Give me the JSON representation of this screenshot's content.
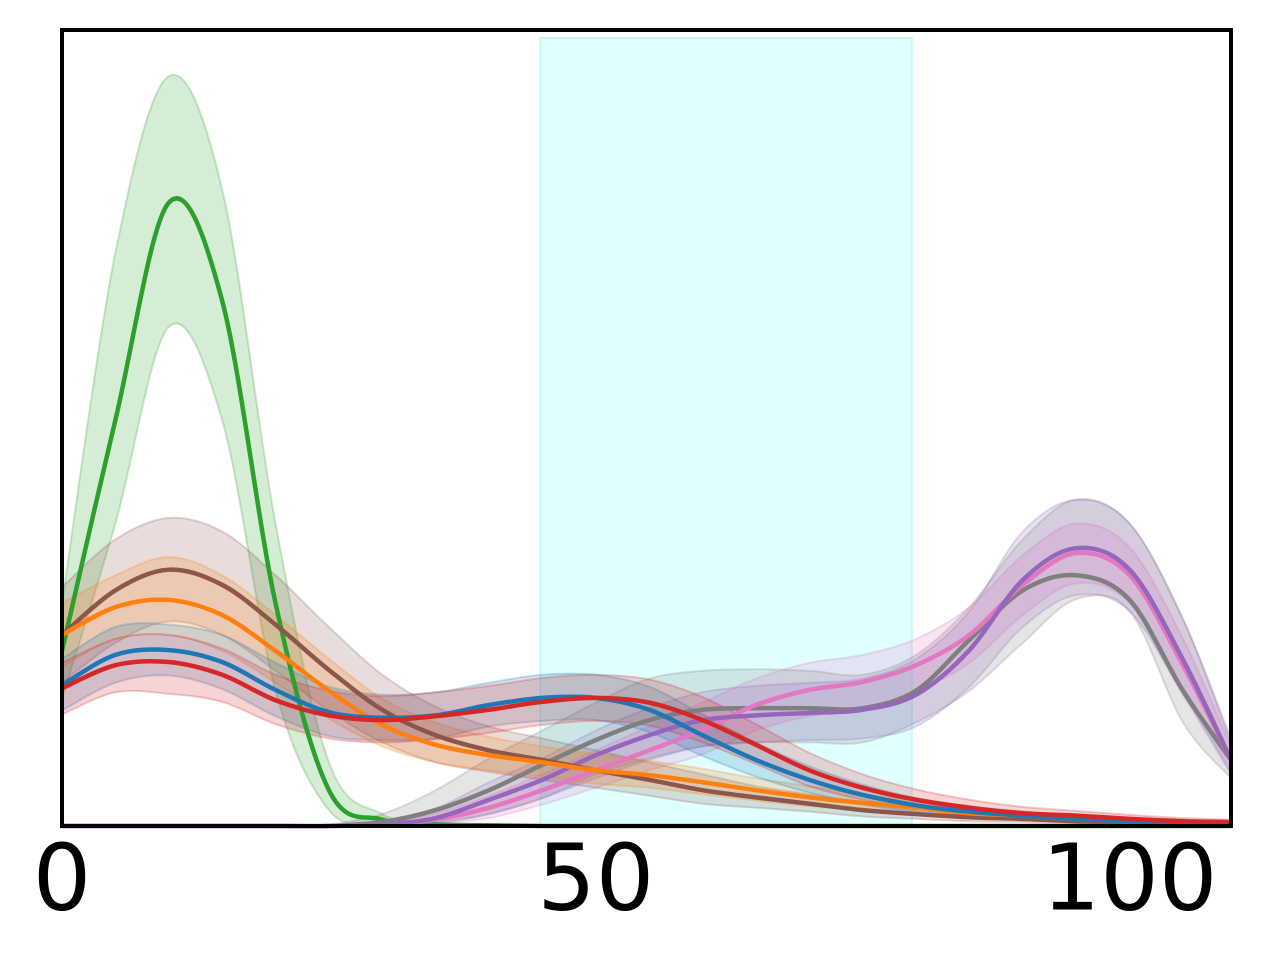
{
  "chart_data": {
    "type": "density",
    "x": [
      0,
      5,
      10,
      15,
      20,
      25,
      30,
      35,
      40,
      45,
      50,
      55,
      60,
      65,
      70,
      75,
      80,
      85,
      90,
      95,
      100,
      105,
      109.5
    ],
    "xlim": [
      0,
      109.5
    ],
    "xticks": [
      0,
      50,
      100
    ],
    "ylim": [
      0,
      100
    ],
    "span": {
      "x": [
        44.8,
        79.6
      ],
      "y": [
        0,
        99
      ],
      "color": "#e0ffff"
    },
    "band_opacity": 0.2,
    "series": [
      {
        "color": "#2ca02c",
        "values": [
          22,
          51,
          78.3,
          66,
          28,
          4.5,
          0.8,
          0.2,
          0.1,
          0,
          0,
          0,
          0,
          0,
          0,
          0,
          0,
          0,
          0,
          0,
          0,
          0,
          0
        ],
        "upper": [
          28,
          72,
          94.2,
          80,
          38,
          8,
          1.5,
          0.3,
          0.1,
          0,
          0,
          0,
          0,
          0,
          0,
          0,
          0,
          0,
          0,
          0,
          0,
          0,
          0
        ],
        "lower": [
          16,
          38,
          62.7,
          51,
          17,
          2,
          0.3,
          0.1,
          0,
          0,
          0,
          0,
          0,
          0,
          0,
          0,
          0,
          0,
          0,
          0,
          0,
          0,
          0
        ]
      },
      {
        "color": "#7f7f7f",
        "values": [
          0,
          0,
          0,
          0,
          0,
          0,
          0.5,
          2,
          4.5,
          7.7,
          10.8,
          13.3,
          14.6,
          14.8,
          14.8,
          14.8,
          17,
          23.4,
          29.6,
          31.5,
          28.4,
          17,
          8.3
        ],
        "upper": [
          0,
          0,
          0,
          0,
          0,
          0.2,
          1.5,
          4.5,
          8.5,
          12,
          15.5,
          18.5,
          19.5,
          19.7,
          19.5,
          19,
          21.5,
          27.5,
          36,
          41,
          38,
          26,
          11
        ],
        "lower": [
          0,
          0,
          0,
          0,
          0,
          0,
          0.1,
          0.5,
          1.5,
          3.5,
          6.5,
          8.5,
          10,
          10.5,
          10.5,
          10.5,
          13,
          17,
          23,
          28.5,
          27,
          13,
          6
        ]
      },
      {
        "color": "#e377c2",
        "values": [
          0,
          0,
          0,
          0,
          0,
          0,
          0.2,
          0.8,
          2.3,
          4.5,
          7,
          9.5,
          12.1,
          15.2,
          17.1,
          18.1,
          20.2,
          24,
          30.3,
          34.3,
          31.5,
          20.2,
          8.3
        ],
        "upper": [
          0,
          0,
          0,
          0,
          0,
          0,
          0.4,
          1.6,
          3.8,
          6.5,
          9.5,
          12.5,
          15.5,
          18.5,
          20.5,
          21.5,
          23.5,
          27.5,
          34,
          38,
          35,
          23.5,
          10
        ],
        "lower": [
          0,
          0,
          0,
          0,
          0,
          0,
          0,
          0.3,
          1,
          2.7,
          4.8,
          7,
          9,
          12,
          13.8,
          14.8,
          17,
          20.5,
          26.5,
          30.5,
          28,
          17,
          6.8
        ]
      },
      {
        "color": "#9467bd",
        "values": [
          0,
          0,
          0,
          0,
          0,
          0,
          0.2,
          1,
          3.3,
          5.8,
          8.9,
          11.4,
          13.3,
          13.9,
          14.2,
          14.6,
          16.5,
          22.1,
          30.9,
          34.9,
          32.2,
          20.9,
          8.3
        ],
        "upper": [
          0,
          0,
          0,
          0,
          0,
          0,
          0.5,
          2.2,
          5.5,
          8.5,
          12,
          14.8,
          16.8,
          17.6,
          18,
          18.5,
          21,
          27,
          37,
          41,
          38,
          26,
          10.5
        ],
        "lower": [
          0,
          0,
          0,
          0,
          0,
          0,
          0,
          0.3,
          1.5,
          3.5,
          6,
          8.3,
          10,
          10.5,
          10.8,
          11,
          12.5,
          17.5,
          25,
          29,
          27,
          16.5,
          6.5
        ]
      },
      {
        "color": "#8c564b",
        "values": [
          24,
          29.6,
          32.2,
          30.3,
          25.3,
          19.6,
          14.6,
          11.4,
          9.5,
          8.3,
          7,
          5.8,
          4.5,
          3.6,
          2.8,
          2,
          1.5,
          1.1,
          0.9,
          0.6,
          0.5,
          0.4,
          0.25
        ],
        "upper": [
          30,
          36,
          38.7,
          37,
          31.5,
          25,
          19,
          15,
          12.5,
          11,
          9.5,
          8,
          6.5,
          5,
          4,
          3,
          2.3,
          1.7,
          1.3,
          1,
          0.8,
          0.6,
          0.4
        ],
        "lower": [
          18,
          23,
          25.7,
          24,
          19.5,
          14.5,
          10.5,
          8,
          6.8,
          5.8,
          4.8,
          3.8,
          2.8,
          2.3,
          1.8,
          1.2,
          0.9,
          0.6,
          0.5,
          0.3,
          0.25,
          0.2,
          0.1
        ]
      },
      {
        "color": "#ff7f0e",
        "values": [
          24,
          27.5,
          28.4,
          26.5,
          22,
          17,
          12.7,
          10.2,
          8.9,
          8,
          7,
          6.4,
          5.5,
          4.5,
          3.6,
          2.9,
          2.3,
          1.6,
          1.3,
          0.9,
          0.6,
          0.4,
          0.25
        ],
        "upper": [
          28,
          31.5,
          33.8,
          31.5,
          26.5,
          21,
          16,
          13,
          11.2,
          10,
          9,
          8.2,
          7.2,
          6,
          5,
          4,
          3.2,
          2.3,
          1.8,
          1.3,
          0.9,
          0.6,
          0.4
        ],
        "lower": [
          20,
          23.5,
          24,
          22,
          18,
          13.5,
          10,
          8,
          7,
          6.2,
          5.3,
          4.8,
          4,
          3.2,
          2.5,
          2,
          1.5,
          1,
          0.8,
          0.5,
          0.35,
          0.2,
          0.1
        ]
      },
      {
        "color": "#1f77b4",
        "values": [
          17.7,
          21.5,
          22.1,
          20.6,
          17.1,
          14.3,
          13.6,
          13.9,
          15.2,
          16.1,
          16.1,
          14.6,
          11.4,
          8.3,
          5.8,
          3.9,
          2.6,
          1.8,
          1.3,
          0.9,
          0.6,
          0.4,
          0.25
        ],
        "upper": [
          21,
          25,
          25.3,
          24,
          20.5,
          17.5,
          16.5,
          16.8,
          18,
          19,
          19,
          17.5,
          14,
          10.5,
          7.5,
          5.2,
          3.5,
          2.5,
          1.8,
          1.3,
          0.9,
          0.6,
          0.4
        ],
        "lower": [
          14.5,
          18,
          18.9,
          17.2,
          13.8,
          11.3,
          10.8,
          11,
          12.5,
          13.2,
          13.3,
          11.8,
          8.8,
          6.2,
          4.2,
          2.7,
          1.8,
          1.2,
          0.8,
          0.5,
          0.35,
          0.2,
          0.1
        ]
      },
      {
        "color": "#d62728",
        "values": [
          17.3,
          20.2,
          20.6,
          19,
          15.8,
          13.9,
          13.3,
          13.8,
          14.6,
          15.6,
          16.1,
          15.5,
          13.3,
          10.2,
          7,
          4.8,
          3.3,
          2.3,
          1.6,
          1.3,
          0.9,
          0.6,
          0.5
        ],
        "upper": [
          20.5,
          23.5,
          24,
          22.3,
          19,
          17,
          16.3,
          16.8,
          17.6,
          18.6,
          19,
          18.4,
          16.2,
          12.8,
          9.2,
          6.5,
          4.6,
          3.3,
          2.4,
          1.9,
          1.4,
          1,
          0.8
        ],
        "lower": [
          14,
          16.8,
          16.6,
          15.6,
          12.8,
          11,
          10.5,
          10.9,
          11.7,
          12.7,
          13.2,
          12.6,
          10.5,
          7.8,
          5,
          3.3,
          2.2,
          1.4,
          1,
          0.7,
          0.5,
          0.3,
          0.2
        ]
      }
    ]
  }
}
